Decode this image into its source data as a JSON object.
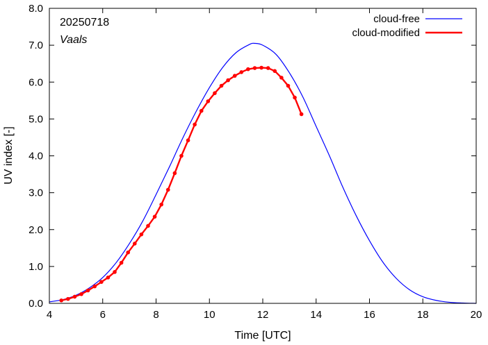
{
  "chart_data": {
    "type": "line",
    "annotations": {
      "date": "20250718",
      "location": "Vaals"
    },
    "xlabel": "Time  [UTC]",
    "ylabel": "UV index  [-]",
    "xlim": [
      4,
      20
    ],
    "ylim": [
      0,
      8
    ],
    "xticks": [
      4,
      6,
      8,
      10,
      12,
      14,
      16,
      18,
      20
    ],
    "yticks": [
      0,
      1,
      2,
      3,
      4,
      5,
      6,
      7,
      8
    ],
    "ytick_labels": [
      "0.0",
      "1.0",
      "2.0",
      "3.0",
      "4.0",
      "5.0",
      "6.0",
      "7.0",
      "8.0"
    ],
    "grid": false,
    "legend_position": "top-right",
    "colors": {
      "cloud_free": "#0000ff",
      "cloud_modified": "#ff0000"
    },
    "series": [
      {
        "name": "cloud-free",
        "style": "line",
        "x": [
          4.0,
          4.5,
          5.0,
          5.5,
          6.0,
          6.5,
          7.0,
          7.5,
          8.0,
          8.5,
          9.0,
          9.5,
          10.0,
          10.5,
          11.0,
          11.5,
          11.7,
          12.0,
          12.5,
          13.0,
          13.5,
          14.0,
          14.5,
          15.0,
          15.5,
          16.0,
          16.5,
          17.0,
          17.5,
          18.0,
          18.5,
          19.0,
          19.5,
          20.0
        ],
        "y": [
          0.04,
          0.1,
          0.22,
          0.42,
          0.7,
          1.1,
          1.62,
          2.23,
          2.95,
          3.7,
          4.48,
          5.2,
          5.85,
          6.4,
          6.8,
          7.02,
          7.05,
          7.0,
          6.75,
          6.25,
          5.6,
          4.8,
          4.0,
          3.15,
          2.38,
          1.7,
          1.12,
          0.68,
          0.37,
          0.18,
          0.08,
          0.03,
          0.01,
          0.0
        ]
      },
      {
        "name": "cloud-modified",
        "style": "line-markers",
        "x": [
          4.45,
          4.7,
          4.95,
          5.2,
          5.45,
          5.7,
          5.95,
          6.2,
          6.45,
          6.7,
          6.95,
          7.2,
          7.45,
          7.7,
          7.95,
          8.2,
          8.45,
          8.7,
          8.95,
          9.2,
          9.45,
          9.7,
          9.95,
          10.2,
          10.45,
          10.7,
          10.95,
          11.2,
          11.45,
          11.7,
          11.95,
          12.2,
          12.45,
          12.7,
          12.95,
          13.2,
          13.45
        ],
        "y": [
          0.08,
          0.12,
          0.18,
          0.25,
          0.35,
          0.46,
          0.58,
          0.7,
          0.85,
          1.1,
          1.38,
          1.62,
          1.87,
          2.1,
          2.35,
          2.68,
          3.08,
          3.53,
          4.0,
          4.42,
          4.85,
          5.22,
          5.48,
          5.7,
          5.9,
          6.05,
          6.17,
          6.27,
          6.35,
          6.38,
          6.39,
          6.38,
          6.3,
          6.12,
          5.9,
          5.58,
          5.13
        ]
      }
    ]
  }
}
